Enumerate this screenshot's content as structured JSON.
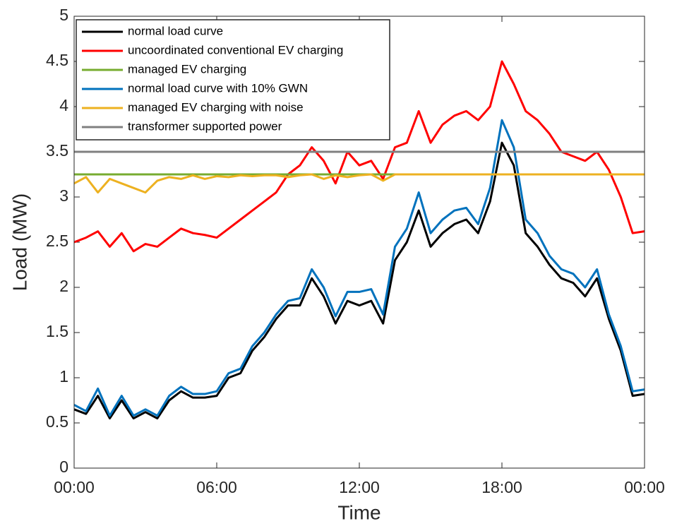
{
  "chart_data": {
    "type": "line",
    "xlabel": "Time",
    "ylabel": "Load (MW)",
    "x": [
      0,
      0.5,
      1,
      1.5,
      2,
      2.5,
      3,
      3.5,
      4,
      4.5,
      5,
      5.5,
      6,
      6.5,
      7,
      7.5,
      8,
      8.5,
      9,
      9.5,
      10,
      10.5,
      11,
      11.5,
      12,
      12.5,
      13,
      13.5,
      14,
      14.5,
      15,
      15.5,
      16,
      16.5,
      17,
      17.5,
      18,
      18.5,
      19,
      19.5,
      20,
      20.5,
      21,
      21.5,
      22,
      22.5,
      23,
      23.5,
      24
    ],
    "xlim": [
      0,
      24
    ],
    "xticks": [
      {
        "value": 0,
        "label": "00:00"
      },
      {
        "value": 6,
        "label": "06:00"
      },
      {
        "value": 12,
        "label": "12:00"
      },
      {
        "value": 18,
        "label": "18:00"
      },
      {
        "value": 24,
        "label": "00:00"
      }
    ],
    "ylim": [
      0,
      5
    ],
    "yticks": [
      0,
      0.5,
      1,
      1.5,
      2,
      2.5,
      3,
      3.5,
      4,
      4.5,
      5
    ],
    "legend": "upper left",
    "series": [
      {
        "name": "normal load curve",
        "color": "#000000",
        "values": [
          0.65,
          0.6,
          0.8,
          0.55,
          0.75,
          0.55,
          0.62,
          0.55,
          0.75,
          0.85,
          0.78,
          0.78,
          0.8,
          1.0,
          1.05,
          1.3,
          1.45,
          1.65,
          1.8,
          1.8,
          2.1,
          1.9,
          1.6,
          1.85,
          1.8,
          1.85,
          1.6,
          2.3,
          2.5,
          2.85,
          2.45,
          2.6,
          2.7,
          2.75,
          2.6,
          2.95,
          3.6,
          3.35,
          2.6,
          2.45,
          2.25,
          2.1,
          2.05,
          1.9,
          2.1,
          1.65,
          1.3,
          0.8,
          0.82
        ]
      },
      {
        "name": "uncoordinated conventional EV charging",
        "color": "#ff0000",
        "values": [
          2.5,
          2.55,
          2.62,
          2.45,
          2.6,
          2.4,
          2.48,
          2.45,
          2.55,
          2.65,
          2.6,
          2.58,
          2.55,
          2.65,
          2.75,
          2.85,
          2.95,
          3.05,
          3.25,
          3.35,
          3.55,
          3.4,
          3.15,
          3.5,
          3.35,
          3.4,
          3.2,
          3.55,
          3.6,
          3.95,
          3.6,
          3.8,
          3.9,
          3.95,
          3.85,
          4.0,
          4.5,
          4.25,
          3.95,
          3.85,
          3.7,
          3.5,
          3.45,
          3.4,
          3.5,
          3.3,
          3.0,
          2.6,
          2.62
        ]
      },
      {
        "name": "managed EV charging",
        "color": "#77ac30",
        "values": [
          3.25,
          3.25,
          3.25,
          3.25,
          3.25,
          3.25,
          3.25,
          3.25,
          3.25,
          3.25,
          3.25,
          3.25,
          3.25,
          3.25,
          3.25,
          3.25,
          3.25,
          3.25,
          3.25,
          3.25,
          3.25,
          3.25,
          3.25,
          3.25,
          3.25,
          3.25,
          3.25,
          3.25,
          3.25,
          3.25,
          3.25,
          3.25,
          3.25,
          3.25,
          3.25,
          3.25,
          3.25,
          3.25,
          3.25,
          3.25,
          3.25,
          3.25,
          3.25,
          3.25,
          3.25,
          3.25,
          3.25,
          3.25,
          3.25
        ]
      },
      {
        "name": "normal load curve with 10% GWN",
        "color": "#0072bd",
        "values": [
          0.7,
          0.63,
          0.88,
          0.58,
          0.8,
          0.58,
          0.65,
          0.58,
          0.8,
          0.9,
          0.82,
          0.82,
          0.85,
          1.05,
          1.1,
          1.35,
          1.5,
          1.7,
          1.85,
          1.88,
          2.2,
          2.0,
          1.68,
          1.95,
          1.95,
          1.98,
          1.7,
          2.45,
          2.65,
          3.05,
          2.6,
          2.75,
          2.85,
          2.88,
          2.7,
          3.1,
          3.85,
          3.55,
          2.75,
          2.6,
          2.35,
          2.2,
          2.15,
          2.0,
          2.2,
          1.7,
          1.35,
          0.85,
          0.87
        ]
      },
      {
        "name": "managed EV charging with noise",
        "color": "#edb120",
        "values": [
          3.15,
          3.22,
          3.05,
          3.2,
          3.15,
          3.1,
          3.05,
          3.18,
          3.22,
          3.2,
          3.24,
          3.2,
          3.23,
          3.22,
          3.24,
          3.23,
          3.24,
          3.24,
          3.22,
          3.24,
          3.25,
          3.2,
          3.24,
          3.22,
          3.24,
          3.25,
          3.18,
          3.25,
          3.25,
          3.25,
          3.25,
          3.25,
          3.25,
          3.25,
          3.25,
          3.25,
          3.25,
          3.25,
          3.25,
          3.25,
          3.25,
          3.25,
          3.25,
          3.25,
          3.25,
          3.25,
          3.25,
          3.25,
          3.25
        ]
      },
      {
        "name": "transformer supported power",
        "color": "#808080",
        "values": [
          3.5,
          3.5,
          3.5,
          3.5,
          3.5,
          3.5,
          3.5,
          3.5,
          3.5,
          3.5,
          3.5,
          3.5,
          3.5,
          3.5,
          3.5,
          3.5,
          3.5,
          3.5,
          3.5,
          3.5,
          3.5,
          3.5,
          3.5,
          3.5,
          3.5,
          3.5,
          3.5,
          3.5,
          3.5,
          3.5,
          3.5,
          3.5,
          3.5,
          3.5,
          3.5,
          3.5,
          3.5,
          3.5,
          3.5,
          3.5,
          3.5,
          3.5,
          3.5,
          3.5,
          3.5,
          3.5,
          3.5,
          3.5,
          3.5
        ]
      }
    ]
  }
}
